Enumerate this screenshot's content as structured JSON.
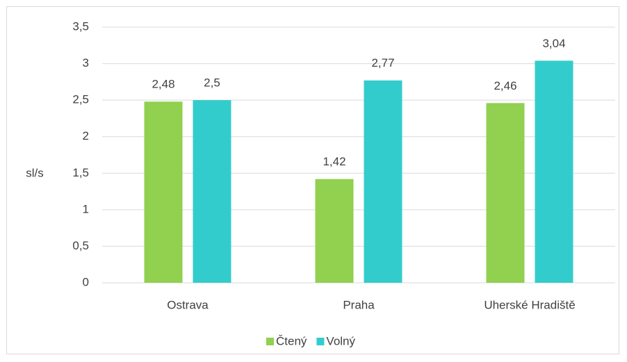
{
  "chart_data": {
    "type": "bar",
    "y_label": "sl/s",
    "categories": [
      "Ostrava",
      "Praha",
      "Uherské Hradiště"
    ],
    "series": [
      {
        "name": "Čtený",
        "color": "#92d050",
        "values": [
          2.48,
          1.42,
          2.46
        ],
        "value_labels": [
          "2,48",
          "1,42",
          "2,46"
        ]
      },
      {
        "name": "Volný",
        "color": "#33cccc",
        "values": [
          2.5,
          2.77,
          3.04
        ],
        "value_labels": [
          "2,5",
          "2,77",
          "3,04"
        ]
      }
    ],
    "ylim": [
      0,
      3.5
    ],
    "yticks": [
      0,
      {
        "value": 0.5,
        "label": "0,5"
      },
      1,
      {
        "value": 1.5,
        "label": "1,5"
      },
      2,
      {
        "value": 2.5,
        "label": "2,5"
      },
      3,
      {
        "value": 3.5,
        "label": "3,5"
      }
    ],
    "grid": true,
    "legend": "bottom"
  }
}
